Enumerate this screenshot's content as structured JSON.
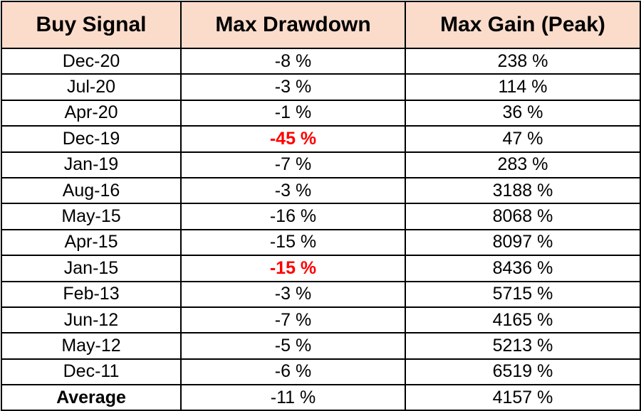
{
  "table": {
    "headers": {
      "signal": "Buy Signal",
      "drawdown": "Max Drawdown",
      "gain": "Max Gain (Peak)"
    },
    "rows": [
      {
        "signal": "Dec-20",
        "drawdown": "-8 %",
        "gain": "238 %",
        "highlight": false
      },
      {
        "signal": "Jul-20",
        "drawdown": "-3 %",
        "gain": "114 %",
        "highlight": false
      },
      {
        "signal": "Apr-20",
        "drawdown": "-1 %",
        "gain": "36 %",
        "highlight": false
      },
      {
        "signal": "Dec-19",
        "drawdown": "-45 %",
        "gain": "47 %",
        "highlight": true
      },
      {
        "signal": "Jan-19",
        "drawdown": "-7 %",
        "gain": "283 %",
        "highlight": false
      },
      {
        "signal": "Aug-16",
        "drawdown": "-3 %",
        "gain": "3188 %",
        "highlight": false
      },
      {
        "signal": "May-15",
        "drawdown": "-16 %",
        "gain": "8068 %",
        "highlight": false
      },
      {
        "signal": "Apr-15",
        "drawdown": "-15 %",
        "gain": "8097 %",
        "highlight": false
      },
      {
        "signal": "Jan-15",
        "drawdown": "-15 %",
        "gain": "8436 %",
        "highlight": true
      },
      {
        "signal": "Feb-13",
        "drawdown": "-3 %",
        "gain": "5715 %",
        "highlight": false
      },
      {
        "signal": "Jun-12",
        "drawdown": "-7 %",
        "gain": "4165 %",
        "highlight": false
      },
      {
        "signal": "May-12",
        "drawdown": "-5 %",
        "gain": "5213 %",
        "highlight": false
      },
      {
        "signal": "Dec-11",
        "drawdown": "-6 %",
        "gain": "6519 %",
        "highlight": false
      }
    ],
    "average": {
      "signal": "Average",
      "drawdown": "-11 %",
      "gain": "4157 %"
    }
  },
  "colors": {
    "header_background": "#fbdccb",
    "highlight_text": "#ff0000",
    "border": "#000000"
  }
}
